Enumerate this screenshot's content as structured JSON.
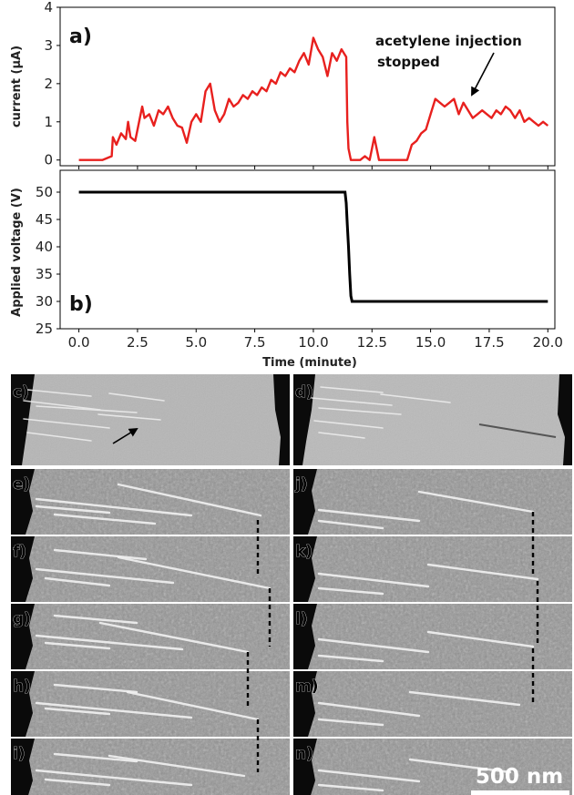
{
  "chart_data": [
    {
      "type": "line",
      "panel_label": "a)",
      "ylabel": "current (μA)",
      "xlabel": "",
      "xlim": [
        -0.8,
        20.3
      ],
      "ylim": [
        -0.15,
        4
      ],
      "xticks": [
        0.0,
        2.5,
        5.0,
        7.5,
        10.0,
        12.5,
        15.0,
        17.5,
        20.0
      ],
      "xtick_labels_shown": false,
      "yticks": [
        0,
        1,
        2,
        3,
        4
      ],
      "ytick_labels": [
        "0",
        "1",
        "2",
        "3",
        "4"
      ],
      "grid": false,
      "annotation": {
        "text_line1": "acetylene injection",
        "text_line2": "stopped",
        "points_to": [
          16.4,
          1.45
        ]
      },
      "series": [
        {
          "color": "#e8201e",
          "x": [
            0.0,
            1.0,
            1.2,
            1.4,
            1.45,
            1.6,
            1.8,
            2.0,
            2.1,
            2.2,
            2.4,
            2.6,
            2.7,
            2.8,
            3.0,
            3.2,
            3.4,
            3.6,
            3.8,
            4.0,
            4.2,
            4.4,
            4.6,
            4.8,
            5.0,
            5.2,
            5.4,
            5.6,
            5.8,
            6.0,
            6.2,
            6.4,
            6.6,
            6.8,
            7.0,
            7.2,
            7.4,
            7.6,
            7.8,
            8.0,
            8.2,
            8.4,
            8.6,
            8.8,
            9.0,
            9.2,
            9.4,
            9.6,
            9.8,
            10.0,
            10.2,
            10.4,
            10.6,
            10.8,
            11.0,
            11.2,
            11.4,
            11.45,
            11.5,
            11.6,
            11.8,
            12.0,
            12.2,
            12.4,
            12.6,
            12.8,
            13.0,
            13.5,
            14.0,
            14.2,
            14.4,
            14.6,
            14.8,
            15.0,
            15.2,
            15.4,
            15.6,
            15.8,
            16.0,
            16.2,
            16.4,
            16.6,
            16.8,
            17.0,
            17.2,
            17.4,
            17.6,
            17.8,
            18.0,
            18.2,
            18.4,
            18.6,
            18.8,
            19.0,
            19.2,
            19.4,
            19.6,
            19.8,
            20.0
          ],
          "y": [
            0.0,
            0.0,
            0.05,
            0.1,
            0.6,
            0.4,
            0.7,
            0.55,
            1.0,
            0.6,
            0.5,
            1.1,
            1.4,
            1.1,
            1.2,
            0.9,
            1.3,
            1.2,
            1.4,
            1.1,
            0.9,
            0.85,
            0.45,
            1.0,
            1.2,
            1.0,
            1.8,
            2.0,
            1.3,
            1.0,
            1.2,
            1.6,
            1.4,
            1.5,
            1.7,
            1.6,
            1.8,
            1.7,
            1.9,
            1.8,
            2.1,
            2.0,
            2.3,
            2.2,
            2.4,
            2.3,
            2.6,
            2.8,
            2.5,
            3.2,
            2.9,
            2.7,
            2.2,
            2.8,
            2.6,
            2.9,
            2.7,
            1.0,
            0.3,
            0.0,
            0.0,
            0.0,
            0.1,
            0.0,
            0.6,
            0.0,
            0.0,
            0.0,
            0.0,
            0.4,
            0.5,
            0.7,
            0.8,
            1.2,
            1.6,
            1.5,
            1.4,
            1.5,
            1.6,
            1.2,
            1.5,
            1.3,
            1.1,
            1.2,
            1.3,
            1.2,
            1.1,
            1.3,
            1.2,
            1.4,
            1.3,
            1.1,
            1.3,
            1.0,
            1.1,
            1.0,
            0.9,
            1.0,
            0.9
          ]
        }
      ]
    },
    {
      "type": "line",
      "panel_label": "b)",
      "ylabel": "Applied voltage (V)",
      "xlabel": "Time (minute)",
      "xlim": [
        -0.8,
        20.3
      ],
      "ylim": [
        25,
        54
      ],
      "xticks": [
        0.0,
        2.5,
        5.0,
        7.5,
        10.0,
        12.5,
        15.0,
        17.5,
        20.0
      ],
      "xtick_labels": [
        "0.0",
        "2.5",
        "5.0",
        "7.5",
        "10.0",
        "12.5",
        "15.0",
        "17.5",
        "20.0"
      ],
      "yticks": [
        25,
        30,
        35,
        40,
        45,
        50
      ],
      "ytick_labels": [
        "25",
        "30",
        "35",
        "40",
        "45",
        "50"
      ],
      "grid": false,
      "series": [
        {
          "color": "#000000",
          "x": [
            0.0,
            11.35,
            11.4,
            11.45,
            11.5,
            11.55,
            11.6,
            11.65,
            20.0
          ],
          "y": [
            50,
            50,
            48,
            44,
            40,
            35,
            31,
            30,
            30
          ]
        }
      ]
    }
  ],
  "micrographs": {
    "labels": [
      "c)",
      "d)",
      "e)",
      "j)",
      "f)",
      "k)",
      "g)",
      "l)",
      "h)",
      "m)",
      "i)",
      "n)"
    ],
    "scale_bar_text": "500 nm"
  }
}
